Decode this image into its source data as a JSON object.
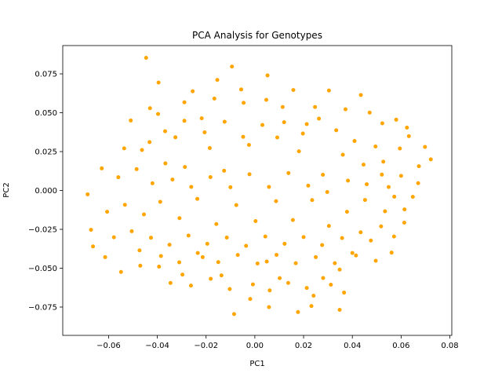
{
  "chart_data": {
    "type": "scatter",
    "title": "PCA Analysis for Genotypes",
    "xlabel": "PC1",
    "ylabel": "PC2",
    "xlim": [
      -0.0788,
      0.0808
    ],
    "ylim": [
      -0.0932,
      0.0932
    ],
    "xticks": [
      -0.06,
      -0.04,
      -0.02,
      0.0,
      0.02,
      0.04,
      0.06,
      0.08
    ],
    "yticks": [
      -0.075,
      -0.05,
      -0.025,
      0.0,
      0.025,
      0.05,
      0.075
    ],
    "xtick_labels": [
      "−0.06",
      "−0.04",
      "−0.02",
      "0.00",
      "0.02",
      "0.04",
      "0.06",
      "0.08"
    ],
    "ytick_labels": [
      "−0.075",
      "−0.050",
      "−0.025",
      "0.000",
      "0.025",
      "0.050",
      "0.075"
    ],
    "grid": false,
    "marker_color": "#FFA500",
    "series": [
      {
        "points": [
          [
            -0.0446,
            0.0853
          ],
          [
            -0.0395,
            0.0694
          ],
          [
            -0.0094,
            0.0797
          ],
          [
            -0.0154,
            0.0711
          ],
          [
            0.0052,
            0.074
          ],
          [
            0.0304,
            0.0643
          ],
          [
            0.0435,
            0.0614
          ],
          [
            -0.0255,
            0.0638
          ],
          [
            -0.0056,
            0.065
          ],
          [
            0.0158,
            0.0646
          ],
          [
            -0.0509,
            0.045
          ],
          [
            -0.0397,
            0.0492
          ],
          [
            -0.0218,
            0.0464
          ],
          [
            0.0047,
            0.0583
          ],
          [
            0.0213,
            0.0427
          ],
          [
            0.058,
            0.0455
          ],
          [
            0.0523,
            0.0432
          ],
          [
            0.0632,
            0.0349
          ],
          [
            0.0698,
            0.028
          ],
          [
            0.0722,
            0.02
          ],
          [
            -0.0536,
            0.0271
          ],
          [
            -0.0628,
            0.0142
          ],
          [
            -0.0686,
            -0.0025
          ],
          [
            -0.056,
            0.0085
          ],
          [
            -0.0463,
            0.026
          ],
          [
            -0.0367,
            0.0174
          ],
          [
            -0.0326,
            0.0342
          ],
          [
            -0.0287,
            0.0151
          ],
          [
            -0.0185,
            0.0273
          ],
          [
            -0.0126,
            0.0127
          ],
          [
            -0.0024,
            0.0293
          ],
          [
            0.0092,
            0.0341
          ],
          [
            0.0181,
            0.0252
          ],
          [
            0.0279,
            0.0101
          ],
          [
            0.0361,
            0.023
          ],
          [
            0.0446,
            0.0166
          ],
          [
            0.0521,
            0.0102
          ],
          [
            0.06,
            0.0094
          ],
          [
            0.067,
            0.0047
          ],
          [
            0.0572,
            -0.004
          ],
          [
            0.0518,
            -0.0231
          ],
          [
            0.0476,
            -0.0322
          ],
          [
            0.0415,
            -0.0418
          ],
          [
            0.0348,
            -0.0509
          ],
          [
            0.0312,
            -0.0606
          ],
          [
            0.0241,
            -0.0677
          ],
          [
            0.0177,
            -0.0782
          ],
          [
            0.0102,
            -0.0564
          ],
          [
            0.0049,
            -0.0457
          ],
          [
            -0.0008,
            -0.0604
          ],
          [
            -0.0085,
            -0.0795
          ],
          [
            -0.0137,
            -0.0546
          ],
          [
            -0.0214,
            -0.0429
          ],
          [
            -0.0297,
            -0.0541
          ],
          [
            -0.0393,
            -0.049
          ],
          [
            -0.0473,
            -0.0385
          ],
          [
            -0.0549,
            -0.0524
          ],
          [
            -0.0614,
            -0.0429
          ],
          [
            -0.0664,
            -0.036
          ],
          [
            -0.0672,
            -0.0253
          ],
          [
            -0.0606,
            -0.0137
          ],
          [
            -0.0533,
            -0.0092
          ],
          [
            -0.0455,
            -0.0154
          ],
          [
            -0.0388,
            -0.0073
          ],
          [
            -0.0309,
            -0.0178
          ],
          [
            -0.0236,
            -0.0054
          ],
          [
            -0.0158,
            -0.0216
          ],
          [
            -0.0076,
            -0.0094
          ],
          [
            0.0003,
            -0.0197
          ],
          [
            0.0087,
            -0.0069
          ],
          [
            0.0156,
            -0.019
          ],
          [
            0.0235,
            -0.0062
          ],
          [
            0.0304,
            -0.0228
          ],
          [
            0.0378,
            -0.0137
          ],
          [
            0.0452,
            -0.0061
          ],
          [
            0.0534,
            -0.0134
          ],
          [
            0.0613,
            -0.0207
          ],
          [
            0.0648,
            -0.0041
          ],
          [
            0.0495,
            0.0283
          ],
          [
            0.0409,
            0.0318
          ],
          [
            0.0334,
            0.0387
          ],
          [
            0.0263,
            0.0462
          ],
          [
            0.0197,
            0.0366
          ],
          [
            0.012,
            0.0439
          ],
          [
            0.0031,
            0.0421
          ],
          [
            -0.0048,
            0.0345
          ],
          [
            -0.0124,
            0.0442
          ],
          [
            -0.0206,
            0.0374
          ],
          [
            -0.0289,
            0.0448
          ],
          [
            -0.0368,
            0.0381
          ],
          [
            -0.0432,
            0.0311
          ],
          [
            -0.0485,
            0.0137
          ],
          [
            -0.042,
            0.0046
          ],
          [
            -0.0338,
            0.007
          ],
          [
            -0.0261,
            0.0023
          ],
          [
            -0.0182,
            0.0086
          ],
          [
            -0.01,
            0.0021
          ],
          [
            -0.0022,
            0.0104
          ],
          [
            0.0058,
            0.0023
          ],
          [
            0.0138,
            0.0112
          ],
          [
            0.0219,
            0.0031
          ],
          [
            0.0297,
            -0.001
          ],
          [
            0.0382,
            0.0063
          ],
          [
            0.0459,
            0.004
          ],
          [
            0.0549,
            0.0022
          ],
          [
            -0.0578,
            -0.0301
          ],
          [
            -0.0505,
            -0.0262
          ],
          [
            -0.0426,
            -0.0304
          ],
          [
            -0.035,
            -0.0349
          ],
          [
            -0.0272,
            -0.029
          ],
          [
            -0.0195,
            -0.0343
          ],
          [
            -0.0115,
            -0.0303
          ],
          [
            -0.0036,
            -0.0356
          ],
          [
            0.0043,
            -0.0296
          ],
          [
            0.0122,
            -0.0343
          ],
          [
            0.02,
            -0.03
          ],
          [
            0.0276,
            -0.0351
          ],
          [
            0.0358,
            -0.0306
          ],
          [
            0.0434,
            -0.0269
          ],
          [
            0.0571,
            -0.0296
          ],
          [
            -0.047,
            -0.0484
          ],
          [
            -0.0385,
            -0.0422
          ],
          [
            -0.031,
            -0.0462
          ],
          [
            -0.0234,
            -0.0402
          ],
          [
            -0.015,
            -0.0461
          ],
          [
            -0.007,
            -0.0415
          ],
          [
            0.0011,
            -0.047
          ],
          [
            0.0089,
            -0.0414
          ],
          [
            0.0168,
            -0.0468
          ],
          [
            0.025,
            -0.0429
          ],
          [
            0.0328,
            -0.0468
          ],
          [
            0.04,
            -0.0402
          ],
          [
            -0.0346,
            -0.0595
          ],
          [
            -0.0262,
            -0.0612
          ],
          [
            -0.0181,
            -0.0568
          ],
          [
            -0.0103,
            -0.0634
          ],
          [
            -0.0019,
            -0.0698
          ],
          [
            0.0061,
            -0.0643
          ],
          [
            0.0137,
            -0.0595
          ],
          [
            0.0213,
            -0.0627
          ],
          [
            0.028,
            -0.0563
          ],
          [
            0.0366,
            -0.0657
          ],
          [
            0.0058,
            -0.075
          ],
          [
            0.0232,
            -0.0743
          ],
          [
            0.0348,
            -0.0768
          ],
          [
            -0.0046,
            0.0564
          ],
          [
            -0.0166,
            0.0591
          ],
          [
            -0.0289,
            0.0567
          ],
          [
            -0.043,
            0.0529
          ],
          [
            0.0114,
            0.0537
          ],
          [
            0.0247,
            0.0537
          ],
          [
            0.0372,
            0.0522
          ],
          [
            0.0471,
            0.0501
          ],
          [
            0.0624,
            0.0404
          ],
          [
            0.0595,
            0.027
          ],
          [
            0.0673,
            0.0156
          ],
          [
            0.0527,
            0.0185
          ],
          [
            0.0614,
            -0.0122
          ],
          [
            0.0561,
            -0.04
          ],
          [
            0.0496,
            -0.0452
          ]
        ]
      }
    ]
  }
}
